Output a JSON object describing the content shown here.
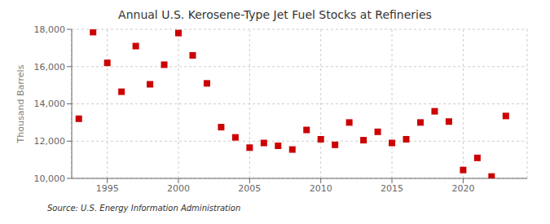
{
  "chart_data": {
    "type": "scatter",
    "title": "Annual U.S. Kerosene-Type Jet Fuel Stocks at Refineries",
    "ylabel": "Thousand Barrels",
    "annotations": [
      "Source: U.S. Energy Information Administration"
    ],
    "x": [
      1993,
      1994,
      1995,
      1996,
      1997,
      1998,
      1999,
      2000,
      2001,
      2002,
      2003,
      2004,
      2005,
      2006,
      2007,
      2008,
      2009,
      2010,
      2011,
      2012,
      2013,
      2014,
      2015,
      2016,
      2017,
      2018,
      2019,
      2020,
      2021,
      2022,
      2023
    ],
    "values": [
      13200,
      17850,
      16200,
      14650,
      17100,
      15050,
      16100,
      17800,
      16600,
      15100,
      12750,
      12200,
      11650,
      11900,
      11750,
      11550,
      12600,
      12100,
      11800,
      13000,
      12050,
      12500,
      11900,
      12100,
      13000,
      13600,
      13050,
      10450,
      11100,
      10100,
      13350
    ],
    "color": "#cc0000",
    "marker": "square",
    "xlim": [
      1992.5,
      2024.5
    ],
    "xticks": [
      1995,
      2000,
      2005,
      2010,
      2015,
      2020
    ],
    "ylim": [
      10000,
      18000
    ],
    "yticks": [
      {
        "value": 10000,
        "label": "10,000"
      },
      {
        "value": 12000,
        "label": "12,000"
      },
      {
        "value": 14000,
        "label": "14,000"
      },
      {
        "value": 16000,
        "label": "16,000"
      },
      {
        "value": 18000,
        "label": "18,000"
      }
    ],
    "grid": true
  }
}
